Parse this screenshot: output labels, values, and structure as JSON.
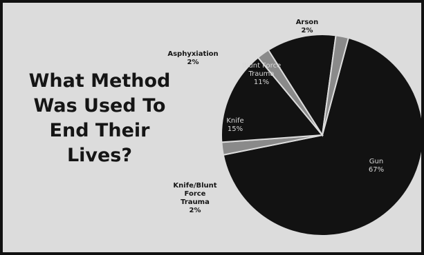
{
  "chart_data": {
    "type": "pie",
    "title": "What Method Was Used To End Their Lives?",
    "title_lines": [
      "What Method",
      "Was Used To",
      "End Their",
      "Lives?"
    ],
    "slices": [
      {
        "label_lines": [
          "Gun"
        ],
        "value_text": "67%",
        "value": 67,
        "color": "#121212",
        "label_inside": true
      },
      {
        "label_lines": [
          "Knife/Blunt",
          "Force",
          "Trauma"
        ],
        "value_text": "2%",
        "value": 2,
        "color": "#8a8a8a",
        "label_inside": false
      },
      {
        "label_lines": [
          "Knife"
        ],
        "value_text": "15%",
        "value": 15,
        "color": "#121212",
        "label_inside": true
      },
      {
        "label_lines": [
          "Asphyxiation"
        ],
        "value_text": "2%",
        "value": 2,
        "color": "#8a8a8a",
        "label_inside": false
      },
      {
        "label_lines": [
          "Blunt Force",
          "Trauma"
        ],
        "value_text": "11%",
        "value": 11,
        "color": "#121212",
        "label_inside": true
      },
      {
        "label_lines": [
          "Arson"
        ],
        "value_text": "2%",
        "value": 2,
        "color": "#8a8a8a",
        "label_inside": false
      }
    ]
  },
  "colors": {
    "background": "#dcdcdc",
    "border": "#111111",
    "slice_edge": "#dcdcdc"
  }
}
